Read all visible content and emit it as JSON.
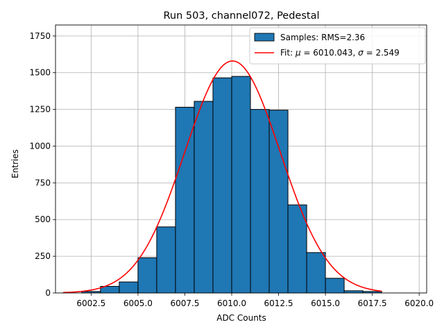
{
  "chart_data": {
    "type": "bar",
    "title": "Run 503, channel072, Pedestal",
    "xlabel": "ADC Counts",
    "ylabel": "Entries",
    "xlim": [
      6000.6,
      6020.4
    ],
    "ylim": [
      0,
      1825
    ],
    "x_ticks": [
      6002.5,
      6005.0,
      6007.5,
      6010.0,
      6012.5,
      6015.0,
      6017.5,
      6020.0
    ],
    "x_tick_labels": [
      "6002.5",
      "6005.0",
      "6007.5",
      "6010.0",
      "6012.5",
      "6015.0",
      "6017.5",
      "6020.0"
    ],
    "y_ticks": [
      0,
      250,
      500,
      750,
      1000,
      1250,
      1500,
      1750
    ],
    "y_tick_labels": [
      "0",
      "250",
      "500",
      "750",
      "1000",
      "1250",
      "1500",
      "1750"
    ],
    "grid": true,
    "legend_position": "top-right",
    "bar_color": "#1f77b4",
    "fit_color": "#ff0000",
    "histogram": {
      "name": "Samples: RMS=2.36",
      "bin_edges": [
        6002,
        6003,
        6004,
        6005,
        6006,
        6007,
        6008,
        6009,
        6010,
        6011,
        6012,
        6013,
        6014,
        6015,
        6016,
        6017
      ],
      "counts": [
        10,
        45,
        75,
        240,
        450,
        1265,
        1305,
        1465,
        1475,
        1250,
        1245,
        600,
        275,
        100,
        15,
        10
      ],
      "bin_width": 1
    },
    "fit": {
      "name": "Fit: μ = 6010.043, σ = 2.549",
      "label_prefix": "Fit: ",
      "mu_symbol": "μ",
      "mu_text": " = 6010.043, ",
      "sigma_symbol": "σ",
      "sigma_text": " = 2.549",
      "mu": 6010.043,
      "sigma": 2.549,
      "amplitude": 1580,
      "x_range": [
        6001,
        6018
      ]
    }
  }
}
